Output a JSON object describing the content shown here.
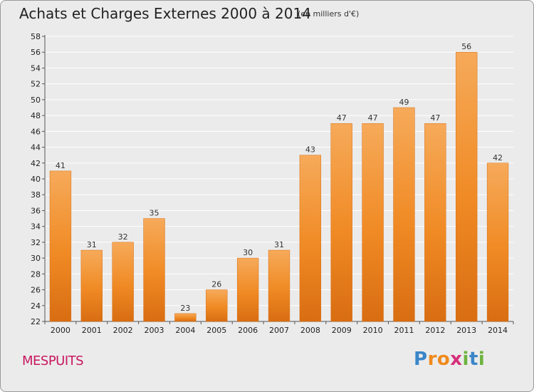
{
  "header": {
    "title": "Achats et Charges Externes 2000 à 2014",
    "subtitle": "(en milliers d'€)"
  },
  "footer": {
    "commune": "MESPUITS",
    "logo_text": "Proxiti",
    "logo_letters": [
      "P",
      "r",
      "o",
      "x",
      "i",
      "t",
      "i"
    ],
    "logo_colors": [
      "#3a86c8",
      "#f08a1c",
      "#f08a1c",
      "#d62f7a",
      "#6cb33f",
      "#3a86c8",
      "#6cb33f"
    ]
  },
  "colors": {
    "bar": "#f08a24",
    "bar_light": "#f6aa5a",
    "bar_dark": "#d86d12",
    "background": "#ebebeb",
    "grid": "#ffffff",
    "title": "#222222",
    "commune": "#c8175f"
  },
  "chart_data": {
    "type": "bar",
    "title": "Achats et Charges Externes 2000 à 2014",
    "subtitle": "(en milliers d'€)",
    "categories": [
      "2000",
      "2001",
      "2002",
      "2003",
      "2004",
      "2005",
      "2006",
      "2007",
      "2008",
      "2009",
      "2010",
      "2011",
      "2012",
      "2013",
      "2014"
    ],
    "values": [
      41,
      31,
      32,
      35,
      23,
      26,
      30,
      31,
      43,
      47,
      47,
      49,
      47,
      56,
      42
    ],
    "ylim": [
      22,
      58
    ],
    "yticks": [
      22,
      24,
      26,
      28,
      30,
      32,
      34,
      36,
      38,
      40,
      42,
      44,
      46,
      48,
      50,
      52,
      54,
      56,
      58
    ],
    "grid": true,
    "xlabel": "",
    "ylabel": ""
  }
}
